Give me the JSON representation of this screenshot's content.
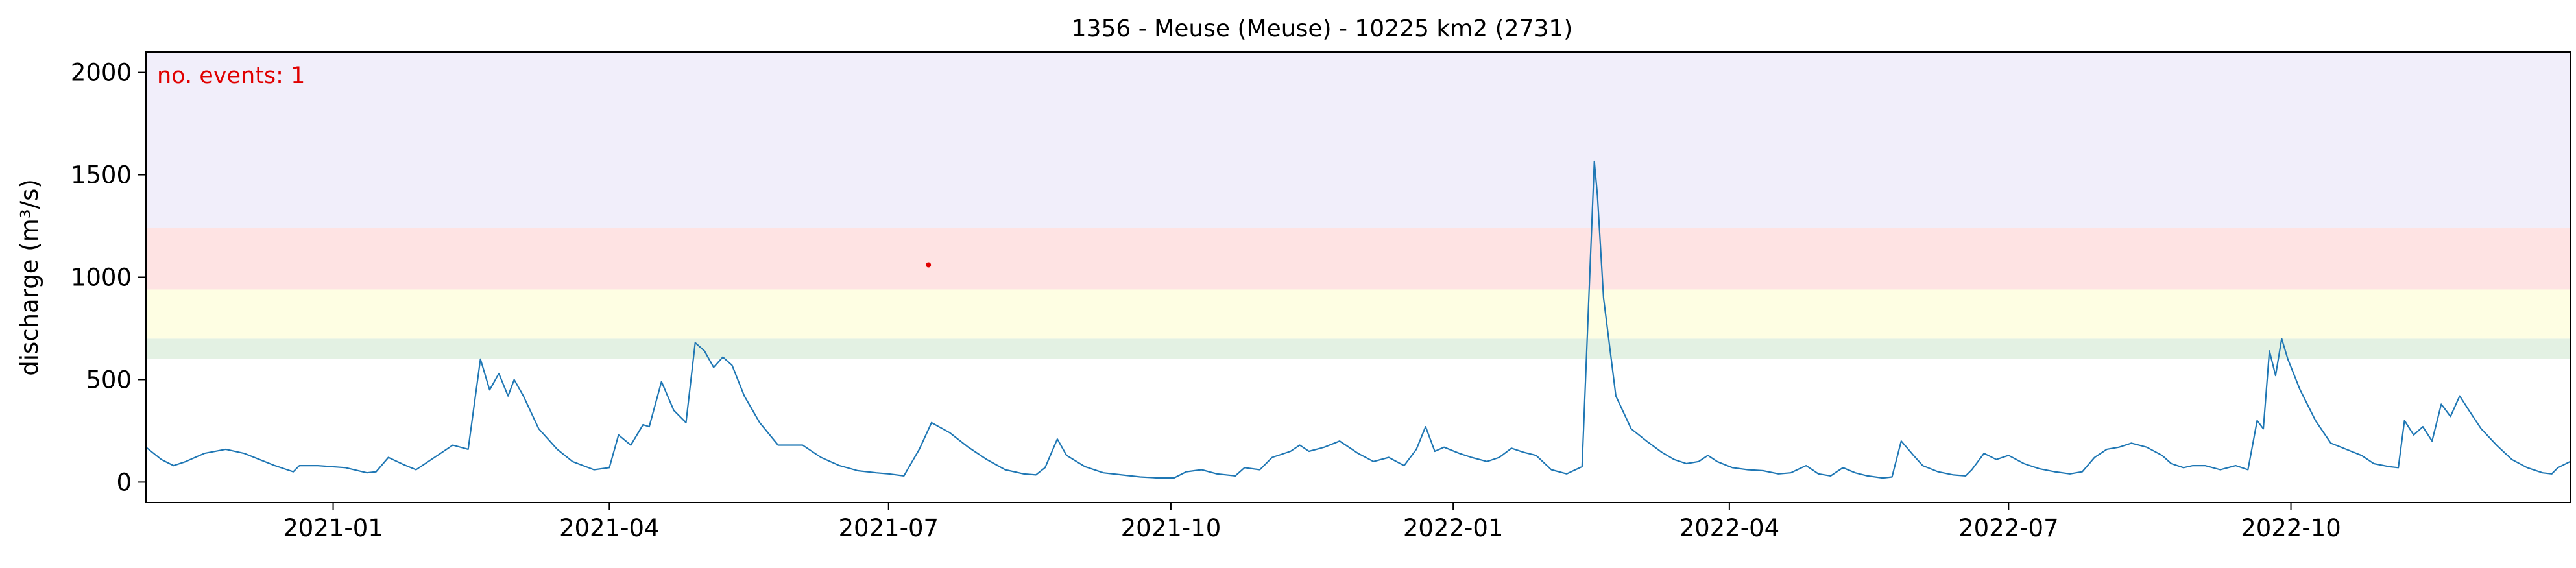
{
  "chart_data": {
    "type": "line",
    "title": "1356 - Meuse (Meuse) - 10225 km2 (2731)",
    "ylabel": "discharge (m³/s)",
    "xlabel": "",
    "xlim": [
      "2020-11-01",
      "2022-12-31"
    ],
    "ylim": [
      -100,
      2100
    ],
    "x_ticks": [
      "2021-01",
      "2021-04",
      "2021-07",
      "2021-10",
      "2022-01",
      "2022-04",
      "2022-07",
      "2022-10"
    ],
    "y_ticks": [
      0,
      500,
      1000,
      1500,
      2000
    ],
    "grid": false,
    "annotation": "no. events: 1",
    "colors": {
      "line": "#1f77b4",
      "event": "#e00000",
      "annotation": "#e00000",
      "band_1": "#e3f1e3",
      "band_2": "#fefee3",
      "band_3": "#fee3e3",
      "band_4": "#f1eefa"
    },
    "threshold_bands": [
      {
        "from": 600,
        "to": 700,
        "color": "#e3f1e3"
      },
      {
        "from": 700,
        "to": 940,
        "color": "#fefee3"
      },
      {
        "from": 940,
        "to": 1240,
        "color": "#fee3e3"
      },
      {
        "from": 1240,
        "to": 2100,
        "color": "#f1eefa"
      }
    ],
    "events": [
      {
        "x": "2021-07-14",
        "y": 1060
      }
    ],
    "series": [
      {
        "points": [
          [
            "2020-11-01",
            170
          ],
          [
            "2020-11-06",
            110
          ],
          [
            "2020-11-10",
            80
          ],
          [
            "2020-11-14",
            100
          ],
          [
            "2020-11-20",
            140
          ],
          [
            "2020-11-27",
            160
          ],
          [
            "2020-12-03",
            140
          ],
          [
            "2020-12-08",
            110
          ],
          [
            "2020-12-13",
            80
          ],
          [
            "2020-12-17",
            60
          ],
          [
            "2020-12-19",
            50
          ],
          [
            "2020-12-21",
            80
          ],
          [
            "2020-12-27",
            80
          ],
          [
            "2021-01-05",
            70
          ],
          [
            "2021-01-12",
            45
          ],
          [
            "2021-01-15",
            50
          ],
          [
            "2021-01-19",
            120
          ],
          [
            "2021-01-24",
            85
          ],
          [
            "2021-01-28",
            60
          ],
          [
            "2021-02-03",
            120
          ],
          [
            "2021-02-09",
            180
          ],
          [
            "2021-02-14",
            160
          ],
          [
            "2021-02-18",
            600
          ],
          [
            "2021-02-21",
            450
          ],
          [
            "2021-02-24",
            530
          ],
          [
            "2021-02-27",
            420
          ],
          [
            "2021-03-01",
            500
          ],
          [
            "2021-03-04",
            420
          ],
          [
            "2021-03-09",
            260
          ],
          [
            "2021-03-15",
            160
          ],
          [
            "2021-03-20",
            100
          ],
          [
            "2021-03-27",
            60
          ],
          [
            "2021-04-01",
            70
          ],
          [
            "2021-04-04",
            230
          ],
          [
            "2021-04-08",
            180
          ],
          [
            "2021-04-12",
            280
          ],
          [
            "2021-04-14",
            270
          ],
          [
            "2021-04-18",
            490
          ],
          [
            "2021-04-22",
            350
          ],
          [
            "2021-04-26",
            290
          ],
          [
            "2021-04-29",
            680
          ],
          [
            "2021-05-02",
            640
          ],
          [
            "2021-05-05",
            560
          ],
          [
            "2021-05-08",
            610
          ],
          [
            "2021-05-11",
            570
          ],
          [
            "2021-05-15",
            420
          ],
          [
            "2021-05-20",
            290
          ],
          [
            "2021-05-26",
            180
          ],
          [
            "2021-06-03",
            180
          ],
          [
            "2021-06-09",
            120
          ],
          [
            "2021-06-15",
            80
          ],
          [
            "2021-06-21",
            55
          ],
          [
            "2021-06-27",
            45
          ],
          [
            "2021-07-01",
            40
          ],
          [
            "2021-07-06",
            30
          ],
          [
            "2021-07-11",
            160
          ],
          [
            "2021-07-15",
            290
          ],
          [
            "2021-07-21",
            240
          ],
          [
            "2021-07-27",
            170
          ],
          [
            "2021-08-02",
            110
          ],
          [
            "2021-08-08",
            60
          ],
          [
            "2021-08-14",
            40
          ],
          [
            "2021-08-18",
            35
          ],
          [
            "2021-08-21",
            70
          ],
          [
            "2021-08-25",
            210
          ],
          [
            "2021-08-28",
            130
          ],
          [
            "2021-09-03",
            75
          ],
          [
            "2021-09-09",
            45
          ],
          [
            "2021-09-15",
            35
          ],
          [
            "2021-09-21",
            25
          ],
          [
            "2021-09-27",
            20
          ],
          [
            "2021-10-02",
            20
          ],
          [
            "2021-10-06",
            50
          ],
          [
            "2021-10-11",
            60
          ],
          [
            "2021-10-16",
            40
          ],
          [
            "2021-10-22",
            30
          ],
          [
            "2021-10-25",
            70
          ],
          [
            "2021-10-30",
            60
          ],
          [
            "2021-11-03",
            120
          ],
          [
            "2021-11-09",
            150
          ],
          [
            "2021-11-12",
            180
          ],
          [
            "2021-11-15",
            150
          ],
          [
            "2021-11-20",
            170
          ],
          [
            "2021-11-25",
            200
          ],
          [
            "2021-12-01",
            140
          ],
          [
            "2021-12-06",
            100
          ],
          [
            "2021-12-11",
            120
          ],
          [
            "2021-12-16",
            80
          ],
          [
            "2021-12-20",
            160
          ],
          [
            "2021-12-23",
            270
          ],
          [
            "2021-12-26",
            150
          ],
          [
            "2021-12-29",
            170
          ],
          [
            "2022-01-03",
            140
          ],
          [
            "2022-01-07",
            120
          ],
          [
            "2022-01-12",
            100
          ],
          [
            "2022-01-16",
            120
          ],
          [
            "2022-01-20",
            165
          ],
          [
            "2022-01-24",
            145
          ],
          [
            "2022-01-28",
            130
          ],
          [
            "2022-02-02",
            60
          ],
          [
            "2022-02-07",
            40
          ],
          [
            "2022-02-12",
            75
          ],
          [
            "2022-02-16",
            1565
          ],
          [
            "2022-02-17",
            1400
          ],
          [
            "2022-02-19",
            900
          ],
          [
            "2022-02-23",
            420
          ],
          [
            "2022-02-28",
            260
          ],
          [
            "2022-03-05",
            200
          ],
          [
            "2022-03-10",
            145
          ],
          [
            "2022-03-14",
            110
          ],
          [
            "2022-03-18",
            90
          ],
          [
            "2022-03-22",
            100
          ],
          [
            "2022-03-25",
            130
          ],
          [
            "2022-03-28",
            100
          ],
          [
            "2022-04-02",
            70
          ],
          [
            "2022-04-07",
            60
          ],
          [
            "2022-04-12",
            55
          ],
          [
            "2022-04-17",
            40
          ],
          [
            "2022-04-21",
            45
          ],
          [
            "2022-04-26",
            80
          ],
          [
            "2022-04-30",
            40
          ],
          [
            "2022-05-04",
            30
          ],
          [
            "2022-05-08",
            70
          ],
          [
            "2022-05-12",
            45
          ],
          [
            "2022-05-16",
            30
          ],
          [
            "2022-05-21",
            20
          ],
          [
            "2022-05-24",
            25
          ],
          [
            "2022-05-27",
            200
          ],
          [
            "2022-05-31",
            130
          ],
          [
            "2022-06-03",
            80
          ],
          [
            "2022-06-08",
            50
          ],
          [
            "2022-06-13",
            35
          ],
          [
            "2022-06-17",
            30
          ],
          [
            "2022-06-19",
            60
          ],
          [
            "2022-06-23",
            140
          ],
          [
            "2022-06-27",
            110
          ],
          [
            "2022-07-01",
            130
          ],
          [
            "2022-07-06",
            90
          ],
          [
            "2022-07-11",
            65
          ],
          [
            "2022-07-16",
            50
          ],
          [
            "2022-07-21",
            40
          ],
          [
            "2022-07-25",
            50
          ],
          [
            "2022-07-29",
            120
          ],
          [
            "2022-08-02",
            160
          ],
          [
            "2022-08-06",
            170
          ],
          [
            "2022-08-10",
            190
          ],
          [
            "2022-08-15",
            170
          ],
          [
            "2022-08-20",
            130
          ],
          [
            "2022-08-23",
            90
          ],
          [
            "2022-08-27",
            70
          ],
          [
            "2022-08-30",
            80
          ],
          [
            "2022-09-03",
            80
          ],
          [
            "2022-09-08",
            60
          ],
          [
            "2022-09-13",
            80
          ],
          [
            "2022-09-17",
            60
          ],
          [
            "2022-09-20",
            300
          ],
          [
            "2022-09-22",
            260
          ],
          [
            "2022-09-24",
            640
          ],
          [
            "2022-09-26",
            520
          ],
          [
            "2022-09-28",
            700
          ],
          [
            "2022-09-30",
            600
          ],
          [
            "2022-10-04",
            450
          ],
          [
            "2022-10-09",
            300
          ],
          [
            "2022-10-14",
            190
          ],
          [
            "2022-10-19",
            160
          ],
          [
            "2022-10-24",
            130
          ],
          [
            "2022-10-28",
            90
          ],
          [
            "2022-11-02",
            75
          ],
          [
            "2022-11-05",
            70
          ],
          [
            "2022-11-07",
            300
          ],
          [
            "2022-11-10",
            230
          ],
          [
            "2022-11-13",
            270
          ],
          [
            "2022-11-16",
            200
          ],
          [
            "2022-11-19",
            380
          ],
          [
            "2022-11-22",
            320
          ],
          [
            "2022-11-25",
            420
          ],
          [
            "2022-11-28",
            350
          ],
          [
            "2022-12-02",
            260
          ],
          [
            "2022-12-07",
            180
          ],
          [
            "2022-12-12",
            110
          ],
          [
            "2022-12-17",
            70
          ],
          [
            "2022-12-22",
            45
          ],
          [
            "2022-12-25",
            40
          ],
          [
            "2022-12-27",
            70
          ],
          [
            "2022-12-31",
            100
          ]
        ]
      }
    ]
  }
}
